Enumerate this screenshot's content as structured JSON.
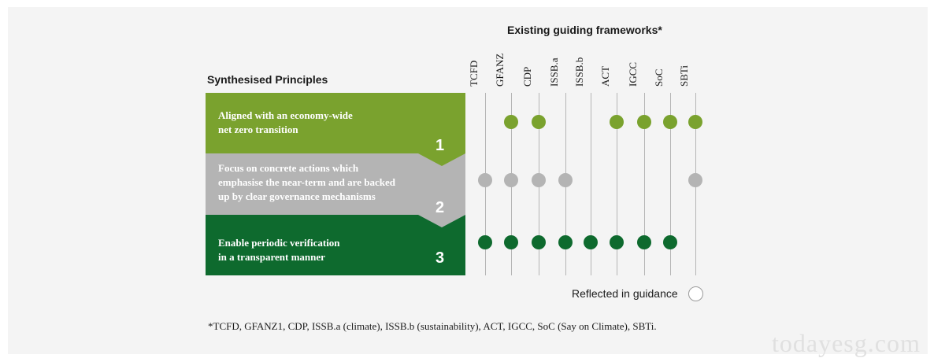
{
  "frameworks_title": "Existing guiding frameworks*",
  "principles_title": "Synthesised Principles",
  "frameworks": [
    "TCFD",
    "GFANZ",
    "CDP",
    "ISSB.a",
    "ISSB.b",
    "ACT",
    "IGCC",
    "SoC",
    "SBTi"
  ],
  "principles": [
    {
      "number": "1",
      "lines": [
        "Aligned with an economy-wide",
        "net zero transition"
      ],
      "color": "#7aa22e",
      "reflected": [
        false,
        true,
        true,
        false,
        false,
        true,
        true,
        true,
        true
      ]
    },
    {
      "number": "2",
      "lines": [
        "Focus on concrete actions which",
        "emphasise the near-term and are backed",
        "up by clear governance mechanisms"
      ],
      "color": "#b4b4b4",
      "reflected": [
        true,
        true,
        true,
        true,
        false,
        false,
        false,
        false,
        true
      ]
    },
    {
      "number": "3",
      "lines": [
        "Enable periodic verification",
        "in a transparent manner"
      ],
      "color": "#0e6a2e",
      "reflected": [
        true,
        true,
        true,
        true,
        true,
        true,
        true,
        true,
        false
      ]
    }
  ],
  "legend_label": "Reflected in guidance",
  "footnote": "*TCFD, GFANZ1, CDP, ISSB.a (climate), ISSB.b (sustainability), ACT, IGCC, SoC (Say on Climate), SBTi.",
  "watermark": "todayesg.com"
}
